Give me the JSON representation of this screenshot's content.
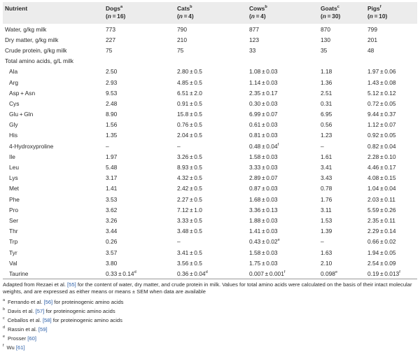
{
  "table": {
    "headers": [
      {
        "name": "Nutrient",
        "sup": "",
        "n": ""
      },
      {
        "name": "Dogs",
        "sup": "a",
        "n": "16"
      },
      {
        "name": "Cats",
        "sup": "b",
        "n": "4"
      },
      {
        "name": "Cows",
        "sup": "b",
        "n": "4"
      },
      {
        "name": "Goats",
        "sup": "c",
        "n": "30"
      },
      {
        "name": "Pigs",
        "sup": "f",
        "n": "10"
      }
    ],
    "n_prefix": "(",
    "n_var": "n",
    "n_eq": " = ",
    "n_suffix": ")",
    "rows": [
      {
        "label": "Water, g/kg milk",
        "indent": false,
        "cells": [
          {
            "v": "773"
          },
          {
            "v": "790"
          },
          {
            "v": "877"
          },
          {
            "v": "870"
          },
          {
            "v": "799"
          }
        ]
      },
      {
        "label": "Dry matter, g/kg milk",
        "indent": false,
        "cells": [
          {
            "v": "227"
          },
          {
            "v": "210"
          },
          {
            "v": "123"
          },
          {
            "v": "130"
          },
          {
            "v": "201"
          }
        ]
      },
      {
        "label": "Crude protein, g/kg milk",
        "indent": false,
        "cells": [
          {
            "v": "75"
          },
          {
            "v": "75"
          },
          {
            "v": "33"
          },
          {
            "v": "35"
          },
          {
            "v": "48"
          }
        ]
      },
      {
        "label": "Total amino acids, g/L milk",
        "indent": false,
        "cells": [
          {
            "v": ""
          },
          {
            "v": ""
          },
          {
            "v": ""
          },
          {
            "v": ""
          },
          {
            "v": ""
          }
        ]
      },
      {
        "label": "Ala",
        "indent": true,
        "cells": [
          {
            "v": "2.50"
          },
          {
            "v": "2.80 ± 0.5"
          },
          {
            "v": "1.08 ± 0.03"
          },
          {
            "v": "1.18"
          },
          {
            "v": "1.97 ± 0.06"
          }
        ]
      },
      {
        "label": "Arg",
        "indent": true,
        "cells": [
          {
            "v": "2.93"
          },
          {
            "v": "4.85 ± 0.5"
          },
          {
            "v": "1.14 ± 0.03"
          },
          {
            "v": "1.36"
          },
          {
            "v": "1.43 ± 0.08"
          }
        ]
      },
      {
        "label": "Asp + Asn",
        "indent": true,
        "cells": [
          {
            "v": "9.53"
          },
          {
            "v": "6.51 ± 2.0"
          },
          {
            "v": "2.35 ± 0.17"
          },
          {
            "v": "2.51"
          },
          {
            "v": "5.12 ± 0.12"
          }
        ]
      },
      {
        "label": "Cys",
        "indent": true,
        "cells": [
          {
            "v": "2.48"
          },
          {
            "v": "0.91 ± 0.5"
          },
          {
            "v": "0.30 ± 0.03"
          },
          {
            "v": "0.31"
          },
          {
            "v": "0.72 ± 0.05"
          }
        ]
      },
      {
        "label": "Glu + Gln",
        "indent": true,
        "cells": [
          {
            "v": "8.90"
          },
          {
            "v": "15.8 ± 0.5"
          },
          {
            "v": "6.99 ± 0.07"
          },
          {
            "v": "6.95"
          },
          {
            "v": "9.44 ± 0.37"
          }
        ]
      },
      {
        "label": "Gly",
        "indent": true,
        "cells": [
          {
            "v": "1.56"
          },
          {
            "v": "0.76 ± 0.5"
          },
          {
            "v": "0.61 ± 0.03"
          },
          {
            "v": "0.56"
          },
          {
            "v": "1.12 ± 0.07"
          }
        ]
      },
      {
        "label": "His",
        "indent": true,
        "cells": [
          {
            "v": "1.35"
          },
          {
            "v": "2.04 ± 0.5"
          },
          {
            "v": "0.81 ± 0.03"
          },
          {
            "v": "1.23"
          },
          {
            "v": "0.92 ± 0.05"
          }
        ]
      },
      {
        "label": "4-Hydroxyproline",
        "indent": true,
        "cells": [
          {
            "v": "–"
          },
          {
            "v": "–"
          },
          {
            "v": "0.48 ± 0.04",
            "sup": "f"
          },
          {
            "v": "–"
          },
          {
            "v": "0.82 ± 0.04"
          }
        ]
      },
      {
        "label": "Ile",
        "indent": true,
        "cells": [
          {
            "v": "1.97"
          },
          {
            "v": "3.26 ± 0.5"
          },
          {
            "v": "1.58 ± 0.03"
          },
          {
            "v": "1.61"
          },
          {
            "v": "2.28 ± 0.10"
          }
        ]
      },
      {
        "label": "Leu",
        "indent": true,
        "cells": [
          {
            "v": "5.48"
          },
          {
            "v": "8.93 ± 0.5"
          },
          {
            "v": "3.33 ± 0.03"
          },
          {
            "v": "3.41"
          },
          {
            "v": "4.46 ± 0.17"
          }
        ]
      },
      {
        "label": "Lys",
        "indent": true,
        "cells": [
          {
            "v": "3.17"
          },
          {
            "v": "4.32 ± 0.5"
          },
          {
            "v": "2.89 ± 0.07"
          },
          {
            "v": "3.43"
          },
          {
            "v": "4.08 ± 0.15"
          }
        ]
      },
      {
        "label": "Met",
        "indent": true,
        "cells": [
          {
            "v": "1.41"
          },
          {
            "v": "2.42 ± 0.5"
          },
          {
            "v": "0.87 ± 0.03"
          },
          {
            "v": "0.78"
          },
          {
            "v": "1.04 ± 0.04"
          }
        ]
      },
      {
        "label": "Phe",
        "indent": true,
        "cells": [
          {
            "v": "3.53"
          },
          {
            "v": "2.27 ± 0.5"
          },
          {
            "v": "1.68 ± 0.03"
          },
          {
            "v": "1.76"
          },
          {
            "v": "2.03 ± 0.11"
          }
        ]
      },
      {
        "label": "Pro",
        "indent": true,
        "cells": [
          {
            "v": "3.62"
          },
          {
            "v": "7.12 ± 1.0"
          },
          {
            "v": "3.36 ± 0.13"
          },
          {
            "v": "3.11"
          },
          {
            "v": "5.59 ± 0.26"
          }
        ]
      },
      {
        "label": "Ser",
        "indent": true,
        "cells": [
          {
            "v": "3.26"
          },
          {
            "v": "3.33 ± 0.5"
          },
          {
            "v": "1.88 ± 0.03"
          },
          {
            "v": "1.53"
          },
          {
            "v": "2.35 ± 0.11"
          }
        ]
      },
      {
        "label": "Thr",
        "indent": true,
        "cells": [
          {
            "v": "3.44"
          },
          {
            "v": "3.48 ± 0.5"
          },
          {
            "v": "1.41 ± 0.03"
          },
          {
            "v": "1.39"
          },
          {
            "v": "2.29 ± 0.14"
          }
        ]
      },
      {
        "label": "Trp",
        "indent": true,
        "cells": [
          {
            "v": "0.26"
          },
          {
            "v": "–"
          },
          {
            "v": "0.43 ± 0.02",
            "sup": "e"
          },
          {
            "v": "–"
          },
          {
            "v": "0.66 ± 0.02"
          }
        ]
      },
      {
        "label": "Tyr",
        "indent": true,
        "cells": [
          {
            "v": "3.57"
          },
          {
            "v": "3.41 ± 0.5"
          },
          {
            "v": "1.58 ± 0.03"
          },
          {
            "v": "1.63"
          },
          {
            "v": "1.94 ± 0.05"
          }
        ]
      },
      {
        "label": "Val",
        "indent": true,
        "cells": [
          {
            "v": "3.80"
          },
          {
            "v": "3.56 ± 0.5"
          },
          {
            "v": "1.75 ± 0.03"
          },
          {
            "v": "2.10"
          },
          {
            "v": "2.54 ± 0.09"
          }
        ]
      },
      {
        "label": "Taurine",
        "indent": true,
        "cells": [
          {
            "v": "0.33 ± 0.14",
            "sup": "d"
          },
          {
            "v": "0.36 ± 0.04",
            "sup": "d"
          },
          {
            "v": "0.007 ± 0.001",
            "sup": "f"
          },
          {
            "v": "0.098",
            "sup": "e"
          },
          {
            "v": "0.19 ± 0.013",
            "sup": "f"
          }
        ]
      }
    ]
  },
  "footnotes": {
    "adapted_pre": "Adapted from Rezaei et al. ",
    "adapted_ref": "[55]",
    "adapted_post": " for the content of water, dry matter, and crude protein in milk. Values for total amino acids were calculated on the basis of their intact molecular weights, and are expressed as either means or means ± SEM when data are available",
    "notes": [
      {
        "mark": "a",
        "pre": "Ferrando et al. ",
        "ref": "[56]",
        "post": " for proteinogenic amino acids"
      },
      {
        "mark": "b",
        "pre": "Davis et al. ",
        "ref": "[57]",
        "post": " for proteinogenic amino acids"
      },
      {
        "mark": "c",
        "pre": "Ceballos et al. ",
        "ref": "[58]",
        "post": " for proteinogenic amino acids"
      },
      {
        "mark": "d",
        "pre": "Rassin et al. ",
        "ref": "[59]",
        "post": ""
      },
      {
        "mark": "e",
        "pre": "Prosser ",
        "ref": "[60]",
        "post": ""
      },
      {
        "mark": "f",
        "pre": "Wu ",
        "ref": "[61]",
        "post": ""
      }
    ]
  }
}
